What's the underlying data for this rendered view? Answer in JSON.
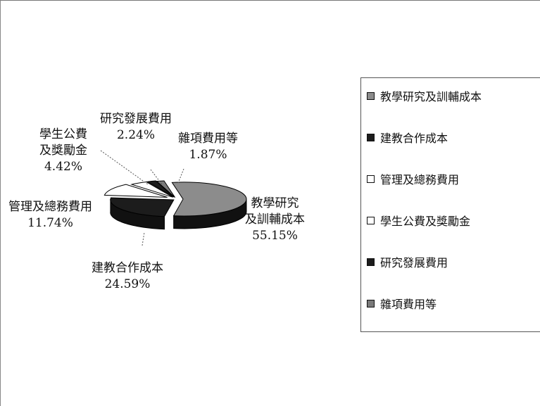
{
  "chart_data": {
    "type": "pie",
    "title": "",
    "series": [
      {
        "values": [
          55.15,
          24.59,
          11.74,
          4.42,
          2.24,
          1.87
        ],
        "value_labels": [
          "55.15%",
          "24.59%",
          "11.74%",
          "4.42%",
          "2.24%",
          "1.87%"
        ]
      }
    ],
    "categories": [
      "教學研究及訓輔成本",
      "建教合作成本",
      "管理及總務費用",
      "學生公費及獎勵金",
      "研究發展費用",
      "雜項費用等"
    ],
    "slice_labels": [
      [
        "教學研究",
        "及訓輔成本"
      ],
      [
        "建教合作成本"
      ],
      [
        "管理及總務費用"
      ],
      [
        "學生公費",
        "及獎勵金"
      ],
      [
        "研究發展費用"
      ],
      [
        "雜項費用等"
      ]
    ],
    "colors": [
      "#8c8c8c",
      "#1c1c1c",
      "#ffffff",
      "#ffffff",
      "#1c1c1c",
      "#7a7a7a"
    ],
    "legend": {
      "position": "right",
      "entries": [
        "教學研究及訓輔成本",
        "建教合作成本",
        "管理及總務費用",
        "學生公費及獎勵金",
        "研究發展費用",
        "雜項費用等"
      ]
    },
    "style": "3d-exploded"
  }
}
